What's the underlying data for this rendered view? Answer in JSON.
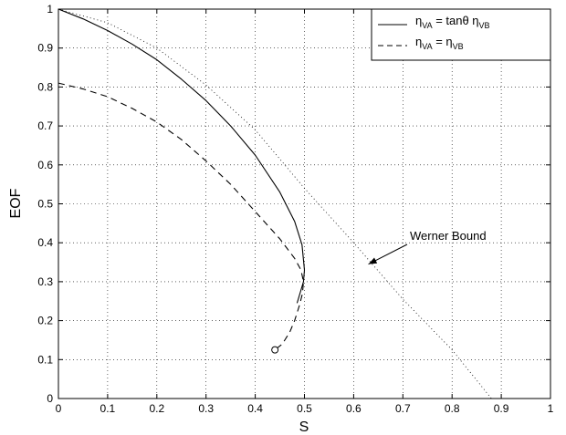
{
  "chart_data": {
    "type": "line",
    "xlabel": "S",
    "ylabel": "EOF",
    "xlim": [
      0,
      1
    ],
    "ylim": [
      0,
      1
    ],
    "xticks": [
      "0",
      "0.1",
      "0.2",
      "0.3",
      "0.4",
      "0.5",
      "0.6",
      "0.7",
      "0.8",
      "0.9",
      "1"
    ],
    "yticks": [
      "0",
      "0.1",
      "0.2",
      "0.3",
      "0.4",
      "0.5",
      "0.6",
      "0.7",
      "0.8",
      "0.9",
      "1"
    ],
    "grid": true,
    "legend_position": "top-right",
    "legend": [
      {
        "label": "η_VA = tanθ η_VB",
        "style": "solid"
      },
      {
        "label": "η_VA = η_VB",
        "style": "dashed"
      }
    ],
    "series": [
      {
        "name": "η_VA = tanθ η_VB",
        "style": "solid",
        "points": [
          [
            0.0,
            1.0
          ],
          [
            0.05,
            0.975
          ],
          [
            0.1,
            0.945
          ],
          [
            0.15,
            0.91
          ],
          [
            0.2,
            0.87
          ],
          [
            0.25,
            0.82
          ],
          [
            0.3,
            0.765
          ],
          [
            0.35,
            0.7
          ],
          [
            0.4,
            0.625
          ],
          [
            0.45,
            0.53
          ],
          [
            0.48,
            0.455
          ],
          [
            0.495,
            0.395
          ],
          [
            0.5,
            0.33
          ],
          [
            0.498,
            0.3
          ],
          [
            0.485,
            0.245
          ]
        ]
      },
      {
        "name": "η_VA = η_VB",
        "style": "dashed",
        "points": [
          [
            0.0,
            0.81
          ],
          [
            0.05,
            0.795
          ],
          [
            0.1,
            0.775
          ],
          [
            0.15,
            0.745
          ],
          [
            0.2,
            0.71
          ],
          [
            0.25,
            0.665
          ],
          [
            0.3,
            0.61
          ],
          [
            0.35,
            0.55
          ],
          [
            0.4,
            0.48
          ],
          [
            0.45,
            0.41
          ],
          [
            0.48,
            0.36
          ],
          [
            0.493,
            0.33
          ],
          [
            0.498,
            0.3
          ],
          [
            0.496,
            0.27
          ],
          [
            0.49,
            0.24
          ],
          [
            0.48,
            0.2
          ],
          [
            0.47,
            0.17
          ],
          [
            0.455,
            0.14
          ],
          [
            0.44,
            0.125
          ]
        ],
        "end_marker": {
          "shape": "circle",
          "x": 0.44,
          "y": 0.125
        }
      },
      {
        "name": "Werner Bound",
        "style": "dotted",
        "points": [
          [
            0.0,
            1.0
          ],
          [
            0.1,
            0.965
          ],
          [
            0.2,
            0.9
          ],
          [
            0.3,
            0.805
          ],
          [
            0.4,
            0.69
          ],
          [
            0.5,
            0.54
          ],
          [
            0.6,
            0.4
          ],
          [
            0.7,
            0.255
          ],
          [
            0.8,
            0.125
          ],
          [
            0.88,
            0.0
          ]
        ]
      }
    ],
    "annotations": [
      {
        "text": "Werner Bound",
        "arrow_to": {
          "x": 0.63,
          "y": 0.345
        }
      }
    ]
  }
}
